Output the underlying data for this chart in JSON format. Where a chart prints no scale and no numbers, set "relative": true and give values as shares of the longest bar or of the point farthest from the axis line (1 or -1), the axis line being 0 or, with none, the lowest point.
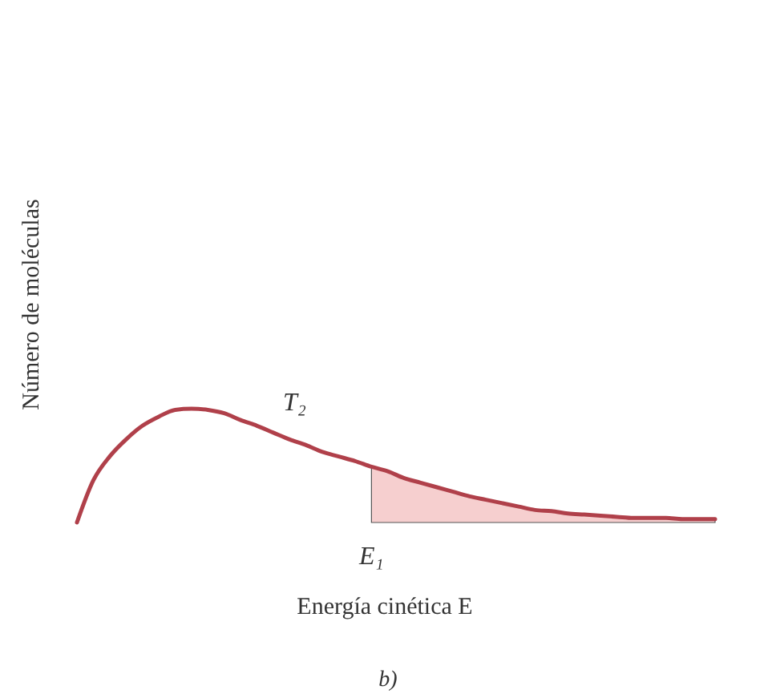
{
  "chart_data": {
    "type": "line",
    "relative": true,
    "xlabel": "Energía cinética E",
    "ylabel": "Número de moléculas",
    "annotations": [
      "E₁",
      "b)"
    ],
    "categories": [
      null,
      null,
      null,
      null,
      null,
      null,
      null,
      null,
      null,
      null,
      null,
      null,
      null,
      null,
      null,
      null,
      null,
      null,
      null,
      null,
      null,
      null,
      null,
      null,
      null,
      null,
      null,
      null,
      null,
      null,
      null,
      null,
      null,
      null,
      null,
      null,
      null,
      null,
      null,
      null
    ],
    "series": [
      {
        "type": "area",
        "color": "#f6cfcf",
        "values": [
          null,
          null,
          null,
          null,
          null,
          null,
          null,
          null,
          null,
          null,
          null,
          null,
          null,
          null,
          null,
          null,
          null,
          null,
          0.49,
          0.45,
          0.39,
          0.35,
          0.31,
          0.27,
          0.23,
          0.2,
          0.17,
          0.14,
          0.11,
          0.1,
          0.08,
          0.07,
          0.06,
          0.05,
          0.04,
          0.04,
          0.04,
          0.03,
          0.03,
          0.03
        ]
      },
      {
        "name": "T₂",
        "color": "#b0404a",
        "values": [
          0,
          0.37,
          0.58,
          0.73,
          0.85,
          0.93,
          0.99,
          1,
          0.99,
          0.96,
          0.9,
          0.85,
          0.79,
          0.73,
          0.68,
          0.62,
          0.58,
          0.54,
          0.49,
          0.45,
          0.39,
          0.35,
          0.31,
          0.27,
          0.23,
          0.2,
          0.17,
          0.14,
          0.11,
          0.1,
          0.08,
          0.07,
          0.06,
          0.05,
          0.04,
          0.04,
          0.04,
          0.03,
          0.03,
          0.03
        ]
      }
    ]
  }
}
